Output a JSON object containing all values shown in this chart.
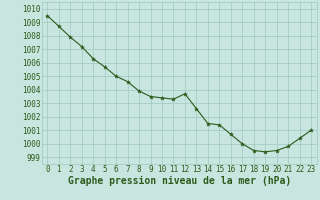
{
  "x": [
    0,
    1,
    2,
    3,
    4,
    5,
    6,
    7,
    8,
    9,
    10,
    11,
    12,
    13,
    14,
    15,
    16,
    17,
    18,
    19,
    20,
    21,
    22,
    23
  ],
  "y": [
    1009.5,
    1008.7,
    1007.9,
    1007.2,
    1006.3,
    1005.7,
    1005.0,
    1004.6,
    1003.9,
    1003.5,
    1003.4,
    1003.3,
    1003.7,
    1002.6,
    1001.5,
    1001.4,
    1000.7,
    1000.0,
    999.5,
    999.4,
    999.5,
    999.8,
    1000.4,
    1001.0
  ],
  "line_color": "#2d5a1b",
  "marker_color": "#2d5a1b",
  "bg_color": "#c8e6df",
  "grid_color": "#9dc8c0",
  "xlabel": "Graphe pression niveau de la mer (hPa)",
  "xlabel_color": "#2d5a1b",
  "ylabel_ticks": [
    999,
    1000,
    1001,
    1002,
    1003,
    1004,
    1005,
    1006,
    1007,
    1008,
    1009,
    1010
  ],
  "ylim": [
    998.5,
    1010.5
  ],
  "xlim": [
    -0.5,
    23.5
  ],
  "xticks": [
    0,
    1,
    2,
    3,
    4,
    5,
    6,
    7,
    8,
    9,
    10,
    11,
    12,
    13,
    14,
    15,
    16,
    17,
    18,
    19,
    20,
    21,
    22,
    23
  ],
  "tick_fontsize": 5.5,
  "xlabel_fontsize": 7.0
}
